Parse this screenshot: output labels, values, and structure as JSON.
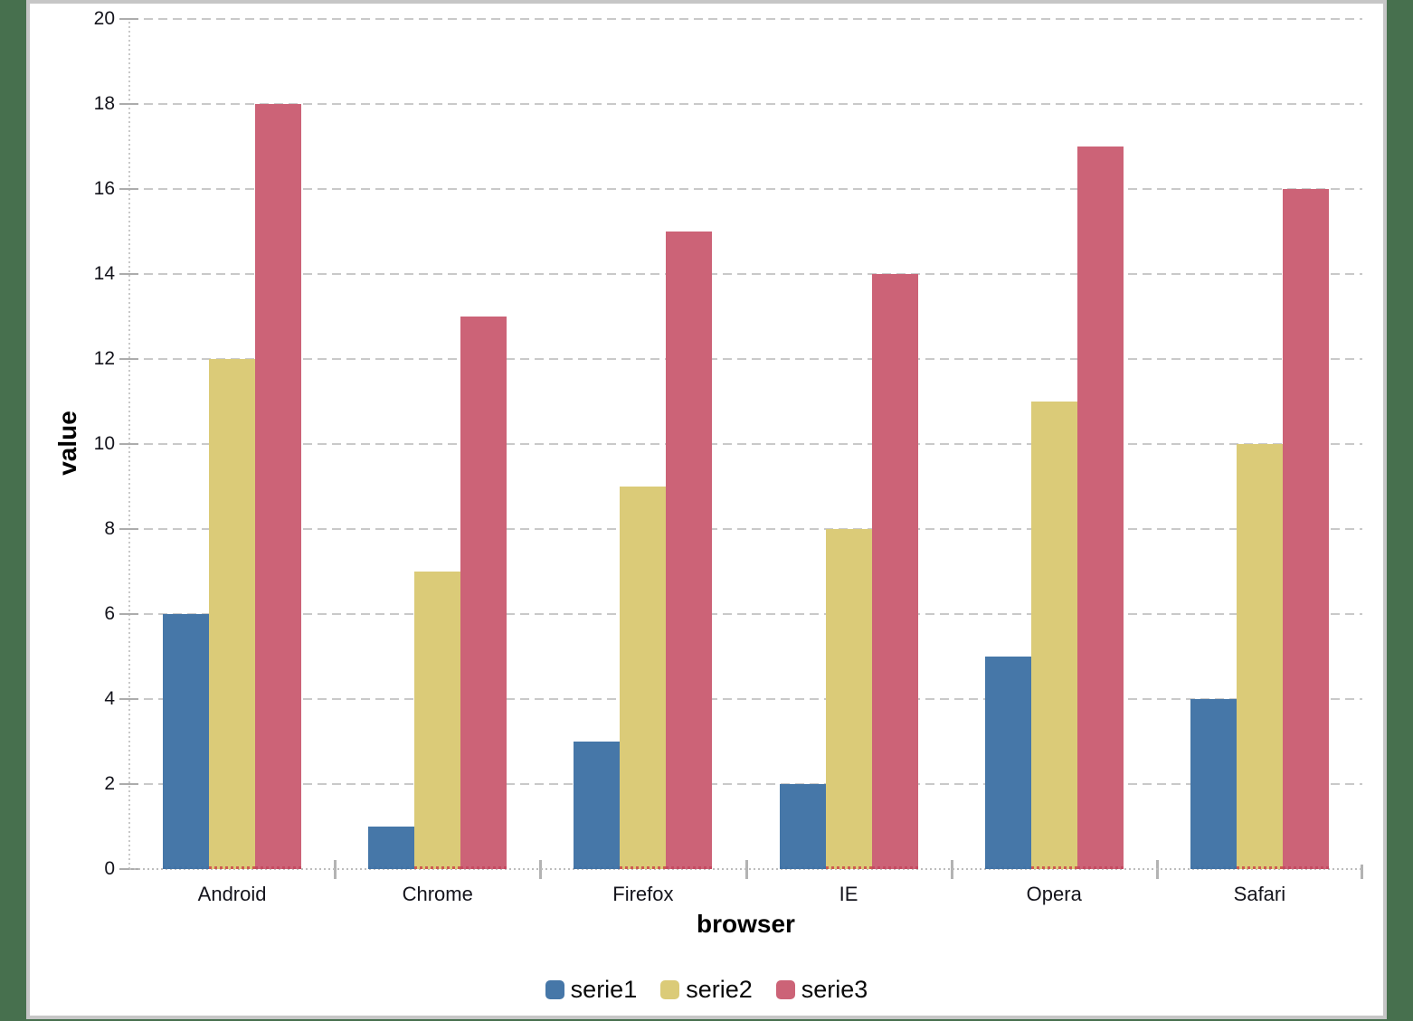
{
  "window": {
    "page_bg": "#47704E",
    "panel_bg": "#FFFFFF",
    "panel_border": "#C6C6C6"
  },
  "colors": {
    "grid": "#C9C9C9",
    "axis_tick": "#ACACAC",
    "tick_label_text": "#14141C",
    "axis_title_text": "#000000",
    "legend_text": "#0A0A0A"
  },
  "chart_data": {
    "type": "bar",
    "title": "",
    "xlabel": "browser",
    "ylabel": "value",
    "categories": [
      "Android",
      "Chrome",
      "Firefox",
      "IE",
      "Opera",
      "Safari"
    ],
    "series": [
      {
        "name": "serie1",
        "color": "#4677A8",
        "edge_color": "#4173A6",
        "values": [
          6,
          1,
          3,
          2,
          5,
          4
        ]
      },
      {
        "name": "serie2",
        "color": "#DBCB78",
        "edge_color": "#CE5B50",
        "values": [
          12,
          7,
          9,
          8,
          11,
          10
        ]
      },
      {
        "name": "serie3",
        "color": "#CC6377",
        "edge_color": "#C54B61",
        "values": [
          18,
          13,
          15,
          14,
          17,
          16
        ]
      }
    ],
    "ylim": [
      0,
      20
    ],
    "yticks": [
      0,
      2,
      4,
      6,
      8,
      10,
      12,
      14,
      16,
      18,
      20
    ],
    "grid": "horizontal-dashed",
    "legend_position": "bottom-center"
  }
}
